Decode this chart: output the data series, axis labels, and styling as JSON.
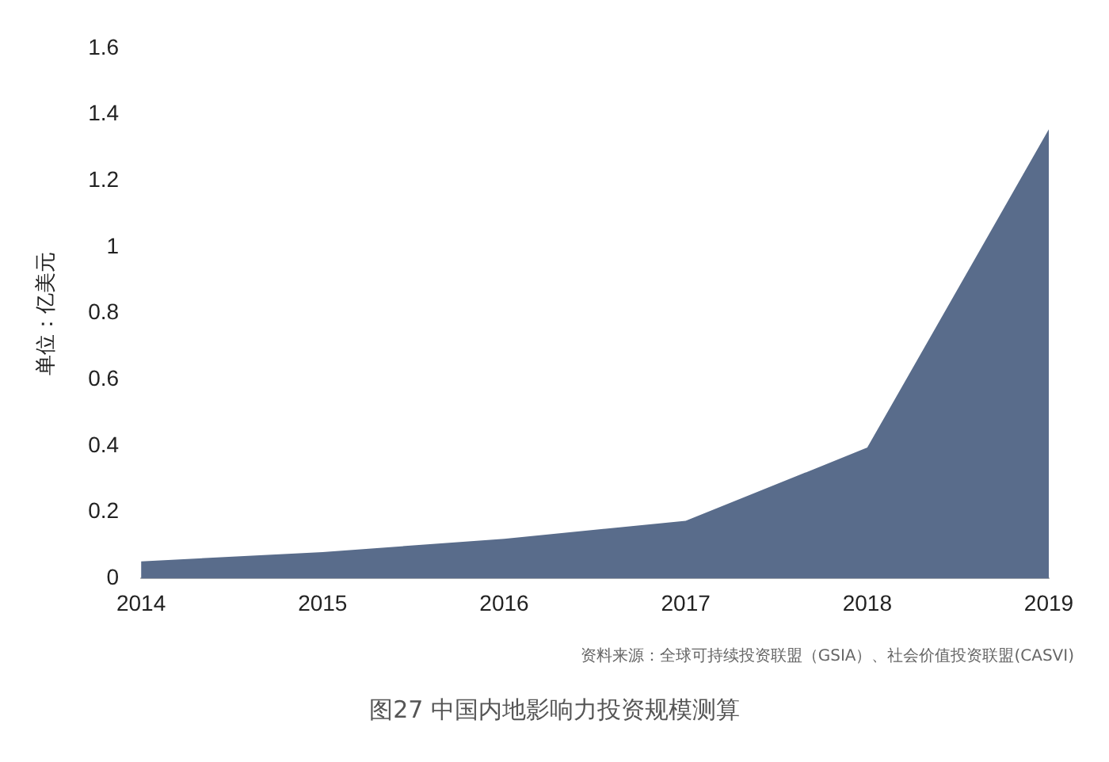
{
  "chart_data": {
    "type": "area",
    "title": "图27  中国内地影响力投资规模测算",
    "ylabel": "单位：亿美元",
    "annotations": [
      "资料来源：全球可持续投资联盟（GSIA）、社会价值投资联盟(CASVI)"
    ],
    "categories": [
      "2014",
      "2015",
      "2016",
      "2017",
      "2018",
      "2019"
    ],
    "series": [
      {
        "color": "#596c8b",
        "values": [
          0.052,
          0.08,
          0.12,
          0.174,
          0.395,
          1.355
        ]
      }
    ],
    "ylim": [
      0,
      1.6
    ],
    "yticks": [
      0,
      0.2,
      0.4,
      0.6,
      0.8,
      1,
      1.2,
      1.4,
      1.6
    ],
    "grid": false,
    "legend": false
  }
}
